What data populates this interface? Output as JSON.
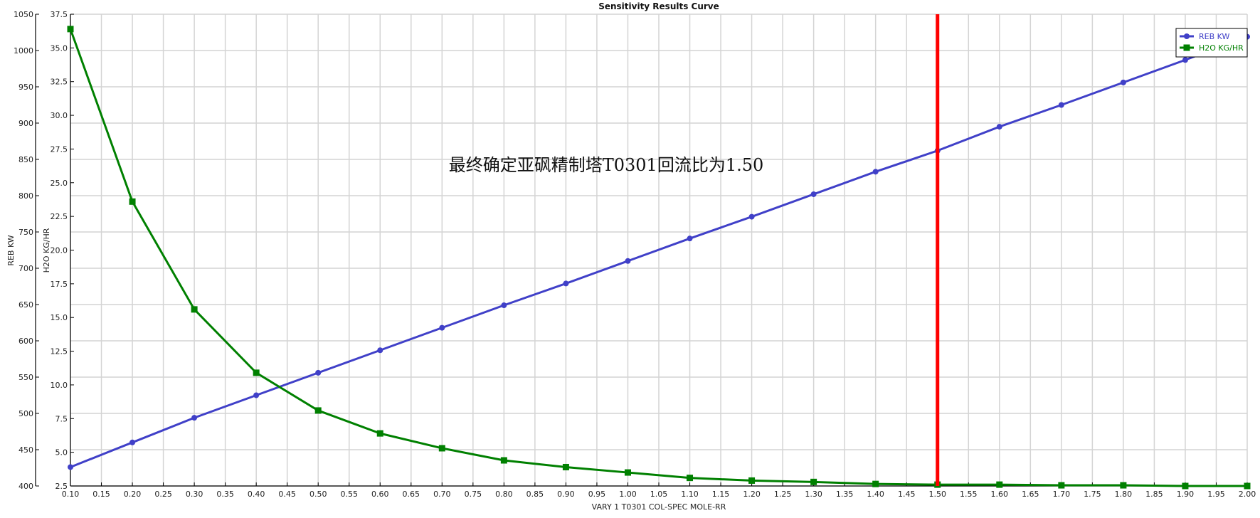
{
  "chart_data": {
    "type": "line",
    "title": "Sensitivity Results Curve",
    "xlabel": "VARY   1 T0301 COL-SPEC MOLE-RR",
    "ylabel_left": "REB KW",
    "ylabel_right_inner": "H2O KG/HR",
    "x": [
      0.1,
      0.2,
      0.3,
      0.4,
      0.5,
      0.6,
      0.7,
      0.8,
      0.9,
      1.0,
      1.1,
      1.2,
      1.3,
      1.4,
      1.5,
      1.6,
      1.7,
      1.8,
      1.9,
      2.0
    ],
    "x_ticks": [
      "0.10",
      "0.15",
      "0.20",
      "0.25",
      "0.30",
      "0.35",
      "0.40",
      "0.45",
      "0.50",
      "0.55",
      "0.60",
      "0.65",
      "0.70",
      "0.75",
      "0.80",
      "0.85",
      "0.90",
      "0.95",
      "1.00",
      "1.05",
      "1.10",
      "1.15",
      "1.20",
      "1.25",
      "1.30",
      "1.35",
      "1.40",
      "1.45",
      "1.50",
      "1.55",
      "1.60",
      "1.65",
      "1.70",
      "1.75",
      "1.80",
      "1.85",
      "1.90",
      "1.95",
      "2.00"
    ],
    "xlim": [
      0.1,
      2.0
    ],
    "y_axes": [
      {
        "name": "REB KW",
        "lim": [
          400,
          1050
        ],
        "ticks": [
          "400",
          "450",
          "500",
          "550",
          "600",
          "650",
          "700",
          "750",
          "800",
          "850",
          "900",
          "950",
          "1000",
          "1050"
        ]
      },
      {
        "name": "H2O KG/HR",
        "lim": [
          2.5,
          37.5
        ],
        "ticks": [
          "2.5",
          "5.0",
          "7.5",
          "10.0",
          "12.5",
          "15.0",
          "17.5",
          "20.0",
          "22.5",
          "25.0",
          "27.5",
          "30.0",
          "32.5",
          "35.0",
          "37.5"
        ]
      }
    ],
    "series": [
      {
        "name": "REB KW",
        "axis": 0,
        "color": "#4040c8",
        "marker": "circle",
        "values": [
          426,
          460,
          494,
          525,
          556,
          587,
          618,
          649,
          679,
          710,
          741,
          771,
          802,
          833,
          862,
          895,
          925,
          956,
          987,
          1019
        ]
      },
      {
        "name": "H2O KG/HR",
        "axis": 1,
        "color": "#008000",
        "marker": "square",
        "values": [
          36.4,
          23.6,
          15.6,
          10.9,
          8.1,
          6.4,
          5.3,
          4.4,
          3.9,
          3.5,
          3.1,
          2.9,
          2.8,
          2.65,
          2.6,
          2.6,
          2.55,
          2.55,
          2.5,
          2.5
        ]
      }
    ],
    "vertical_marker": {
      "x": 1.5,
      "color": "#ff0000"
    },
    "annotation": "最终确定亚砜精制塔T0301回流比为1.50",
    "legend": {
      "position": "top-right",
      "entries": [
        "REB KW",
        "H2O KG/HR"
      ]
    },
    "grid": true
  }
}
